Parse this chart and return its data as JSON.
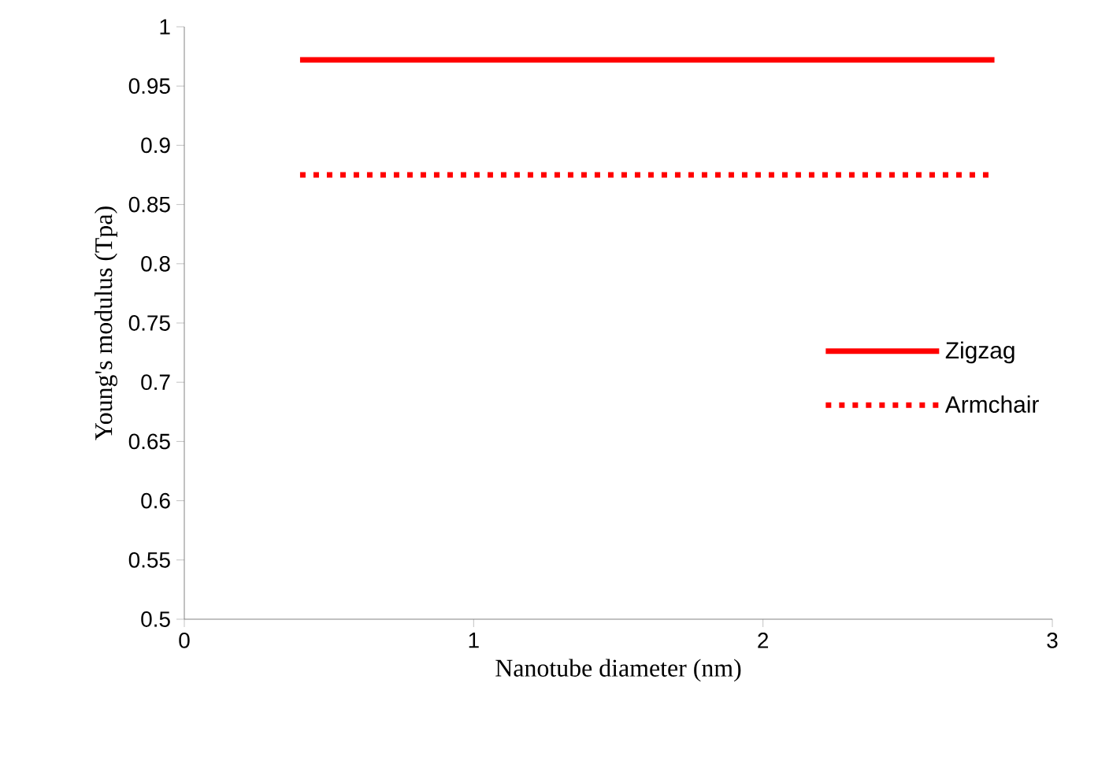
{
  "chart_data": {
    "type": "line",
    "xlabel": "Nanotube diameter (nm)",
    "ylabel": "Young's modulus (Tpa)",
    "xlim": [
      0,
      3
    ],
    "xticks": [
      0,
      1,
      2,
      3
    ],
    "ylim": [
      0.5,
      1
    ],
    "yticks": [
      0.5,
      0.55,
      0.6,
      0.65,
      0.7,
      0.75,
      0.8,
      0.85,
      0.9,
      0.95,
      1
    ],
    "grid": false,
    "x": [
      0.4,
      2.8
    ],
    "legend": "right",
    "marker": "none",
    "series": [
      {
        "name": "Zigzag",
        "color": "#ff0000",
        "line_style": "solid",
        "values": [
          0.972,
          0.972
        ]
      },
      {
        "name": "Armchair",
        "color": "#ff0000",
        "line_style": "dotted",
        "values": [
          0.875,
          0.875
        ]
      }
    ]
  }
}
